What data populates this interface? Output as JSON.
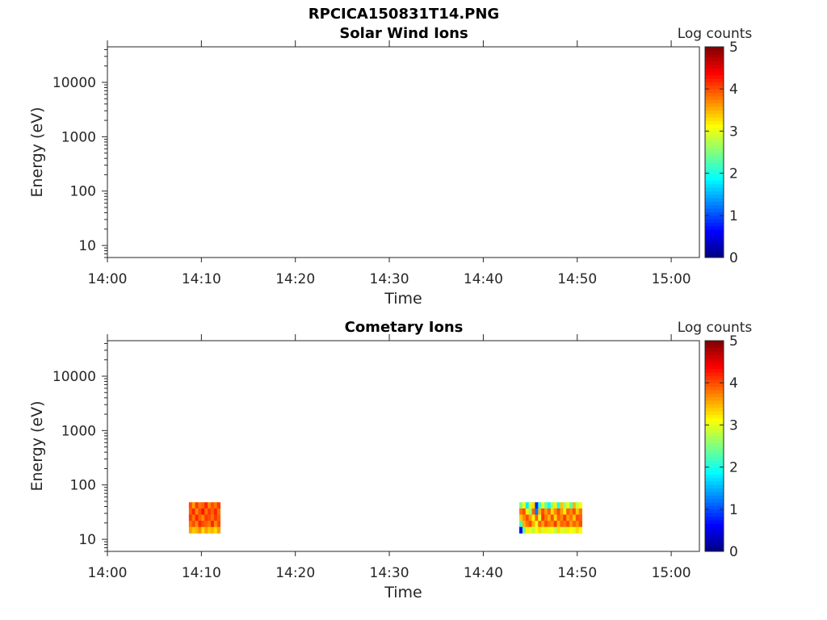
{
  "figure": {
    "title": "RPCICA150831T14.PNG"
  },
  "chart_data": [
    {
      "type": "heatmap",
      "title": "Solar Wind Ions",
      "xlabel": "Time",
      "ylabel": "Energy (eV)",
      "x_ticks": [
        "14:00",
        "14:10",
        "14:20",
        "14:30",
        "14:40",
        "14:50",
        "15:00"
      ],
      "xlim": [
        "14:00",
        "15:03"
      ],
      "y_scale": "log",
      "y_ticks": [
        10,
        100,
        1000,
        10000
      ],
      "y_tick_labels": [
        "10",
        "100",
        "1000",
        "10000"
      ],
      "ylim": [
        6,
        45000
      ],
      "colorbar": {
        "label": "Log counts",
        "range": [
          0,
          5
        ],
        "ticks": [
          "0",
          "1",
          "2",
          "3",
          "4",
          "5"
        ],
        "colormap": "jet"
      },
      "blocks": []
    },
    {
      "type": "heatmap",
      "title": "Cometary Ions",
      "xlabel": "Time",
      "ylabel": "Energy (eV)",
      "x_ticks": [
        "14:00",
        "14:10",
        "14:20",
        "14:30",
        "14:40",
        "14:50",
        "15:00"
      ],
      "xlim": [
        "14:00",
        "15:03"
      ],
      "y_scale": "log",
      "y_ticks": [
        10,
        100,
        1000,
        10000
      ],
      "y_tick_labels": [
        "10",
        "100",
        "1000",
        "10000"
      ],
      "ylim": [
        6,
        45000
      ],
      "colorbar": {
        "label": "Log counts",
        "range": [
          0,
          5
        ],
        "ticks": [
          "0",
          "1",
          "2",
          "3",
          "4",
          "5"
        ],
        "colormap": "jet"
      },
      "blocks": [
        {
          "t_start": "14:08:40",
          "t_end": "14:12:00",
          "energy_range": [
            13,
            48
          ],
          "log_counts": [
            [
              4.0,
              3.6,
              4.1,
              3.8,
              3.9,
              4.2,
              3.7,
              4.0,
              3.8,
              4.1
            ],
            [
              3.9,
              4.2,
              3.7,
              4.0,
              4.3,
              3.8,
              4.1,
              3.9,
              4.2,
              3.8
            ],
            [
              4.1,
              3.8,
              4.2,
              3.9,
              3.7,
              4.1,
              4.0,
              3.8,
              4.1,
              3.9
            ],
            [
              3.8,
              4.0,
              3.7,
              4.2,
              4.0,
              3.9,
              3.8,
              4.2,
              3.7,
              4.0
            ],
            [
              3.6,
              3.4,
              3.5,
              3.7,
              3.3,
              3.6,
              3.4,
              3.5,
              3.3,
              3.6
            ]
          ]
        },
        {
          "t_start": "14:43:50",
          "t_end": "14:50:30",
          "energy_range": [
            13,
            48
          ],
          "log_counts": [
            [
              2.5,
              3.1,
              1.8,
              2.9,
              3.3,
              0.8,
              2.2,
              3.0,
              2.4,
              1.9,
              2.7,
              3.2,
              2.0,
              3.4,
              2.6,
              3.0,
              2.3,
              3.5,
              2.8,
              3.1
            ],
            [
              3.8,
              4.0,
              3.2,
              2.6,
              3.9,
              1.2,
              3.5,
              4.0,
              3.6,
              3.9,
              3.3,
              3.7,
              4.0,
              3.6,
              3.2,
              3.9,
              3.7,
              4.0,
              3.4,
              3.8
            ],
            [
              3.4,
              3.7,
              4.0,
              3.6,
              3.2,
              3.9,
              3.0,
              4.1,
              3.8,
              3.5,
              4.0,
              3.3,
              3.9,
              3.7,
              4.1,
              3.6,
              3.8,
              3.4,
              4.0,
              3.9
            ],
            [
              2.2,
              3.5,
              3.8,
              4.0,
              3.5,
              3.0,
              3.9,
              3.6,
              4.0,
              3.8,
              3.7,
              4.1,
              3.5,
              3.9,
              3.8,
              4.0,
              3.6,
              3.9,
              3.7,
              4.0
            ],
            [
              0.6,
              2.4,
              3.2,
              3.0,
              2.8,
              3.1,
              3.3,
              2.9,
              3.2,
              3.0,
              3.1,
              2.8,
              3.3,
              3.0,
              2.9,
              3.2,
              3.1,
              3.0,
              3.3,
              3.1
            ]
          ]
        }
      ]
    }
  ]
}
